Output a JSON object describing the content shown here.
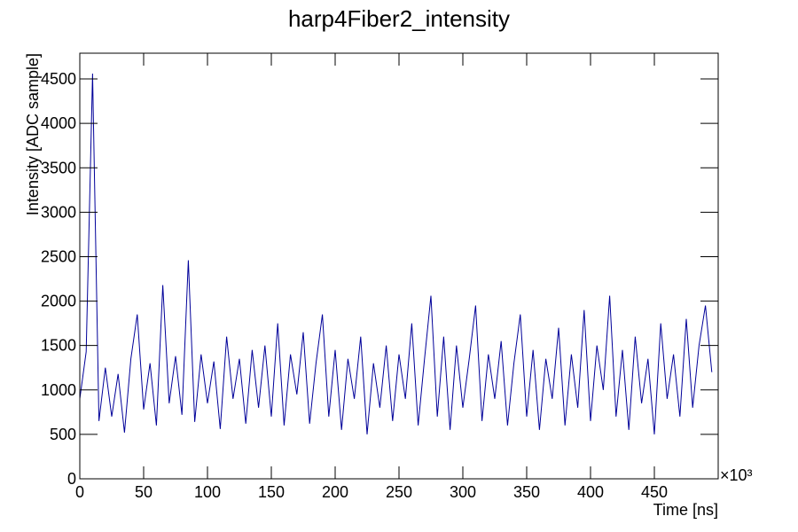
{
  "chart_data": {
    "type": "line",
    "title": "harp4Fiber2_intensity",
    "x_label": "Time [ns]",
    "y_label": "Intensity [ADC sample]",
    "x_multiplier": "×10³",
    "color": "#000099",
    "x": [
      0,
      5,
      10,
      15,
      20,
      25,
      30,
      35,
      40,
      45,
      50,
      55,
      60,
      65,
      70,
      75,
      80,
      85,
      90,
      95,
      100,
      105,
      110,
      115,
      120,
      125,
      130,
      135,
      140,
      145,
      150,
      155,
      160,
      165,
      170,
      175,
      180,
      185,
      190,
      195,
      200,
      205,
      210,
      215,
      220,
      225,
      230,
      235,
      240,
      245,
      250,
      255,
      260,
      265,
      270,
      275,
      280,
      285,
      290,
      295,
      300,
      305,
      310,
      315,
      320,
      325,
      330,
      335,
      340,
      345,
      350,
      355,
      360,
      365,
      370,
      375,
      380,
      385,
      390,
      395,
      400,
      405,
      410,
      415,
      420,
      425,
      430,
      435,
      440,
      445,
      450,
      455,
      460,
      465,
      470,
      475,
      480,
      485,
      490,
      495
    ],
    "values": [
      900,
      1430,
      4560,
      650,
      1250,
      700,
      1180,
      520,
      1350,
      1850,
      780,
      1300,
      600,
      2180,
      850,
      1380,
      720,
      2460,
      640,
      1400,
      850,
      1320,
      560,
      1600,
      900,
      1350,
      620,
      1450,
      800,
      1500,
      700,
      1750,
      600,
      1400,
      950,
      1650,
      620,
      1300,
      1850,
      700,
      1450,
      550,
      1350,
      900,
      1600,
      500,
      1300,
      800,
      1500,
      650,
      1400,
      900,
      1750,
      600,
      1350,
      2060,
      700,
      1600,
      550,
      1500,
      800,
      1350,
      1950,
      650,
      1400,
      900,
      1550,
      600,
      1300,
      1850,
      700,
      1450,
      550,
      1350,
      900,
      1700,
      600,
      1400,
      800,
      1900,
      650,
      1500,
      1000,
      2060,
      700,
      1450,
      550,
      1600,
      850,
      1350,
      500,
      1750,
      900,
      1400,
      700,
      1800,
      800,
      1500,
      1950,
      1200
    ],
    "xlim": [
      0,
      500
    ],
    "ylim": [
      0,
      4790
    ],
    "xticks": [
      0,
      50,
      100,
      150,
      200,
      250,
      300,
      350,
      400,
      450
    ],
    "yticks": [
      0,
      500,
      1000,
      1500,
      2000,
      2500,
      3000,
      3500,
      4000,
      4500
    ]
  }
}
